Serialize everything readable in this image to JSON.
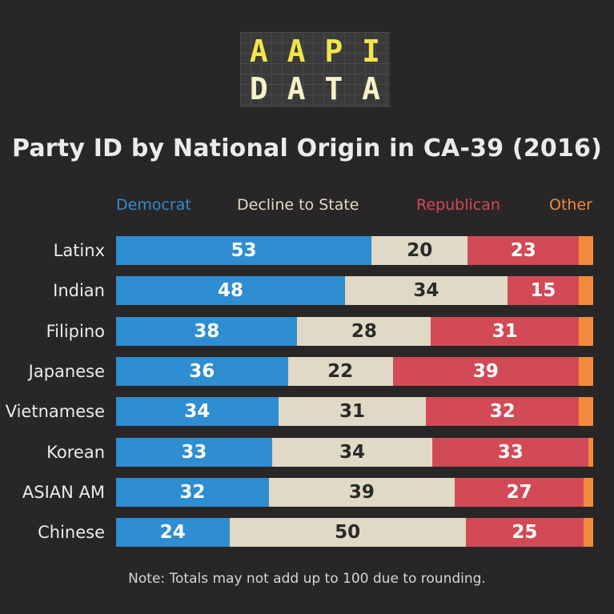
{
  "logo": {
    "line1": [
      "A",
      "A",
      "P",
      "I"
    ],
    "line2": [
      "D",
      "A",
      "T",
      "A"
    ]
  },
  "footnote": "Note: Totals may not add up to 100 due to rounding.",
  "chart_data": {
    "type": "bar",
    "orientation": "horizontal",
    "stacked": true,
    "title": "Party ID by National Origin in CA-39 (2016)",
    "categories": [
      "Latinx",
      "Indian",
      "Filipino",
      "Japanese",
      "Vietnamese",
      "Korean",
      "ASIAN AM",
      "Chinese"
    ],
    "series": [
      {
        "name": "Democrat",
        "color": "#2f8dd1",
        "label_color": "#ffffff",
        "values": [
          53,
          48,
          38,
          36,
          34,
          33,
          32,
          24
        ]
      },
      {
        "name": "Decline to State",
        "color": "#e0d9c5",
        "label_color": "#2a2a2a",
        "values": [
          20,
          34,
          28,
          22,
          31,
          34,
          39,
          50
        ]
      },
      {
        "name": "Republican",
        "color": "#d24a55",
        "label_color": "#ffffff",
        "values": [
          23,
          15,
          31,
          39,
          32,
          33,
          27,
          25
        ]
      },
      {
        "name": "Other",
        "color": "#f08c3c",
        "label_color": "#ffffff",
        "values": [
          3,
          3,
          3,
          3,
          3,
          1,
          2,
          2
        ]
      }
    ],
    "show_value_labels_for_series": [
      "Democrat",
      "Decline to State",
      "Republican"
    ],
    "legend_position": "top",
    "grid": false
  }
}
